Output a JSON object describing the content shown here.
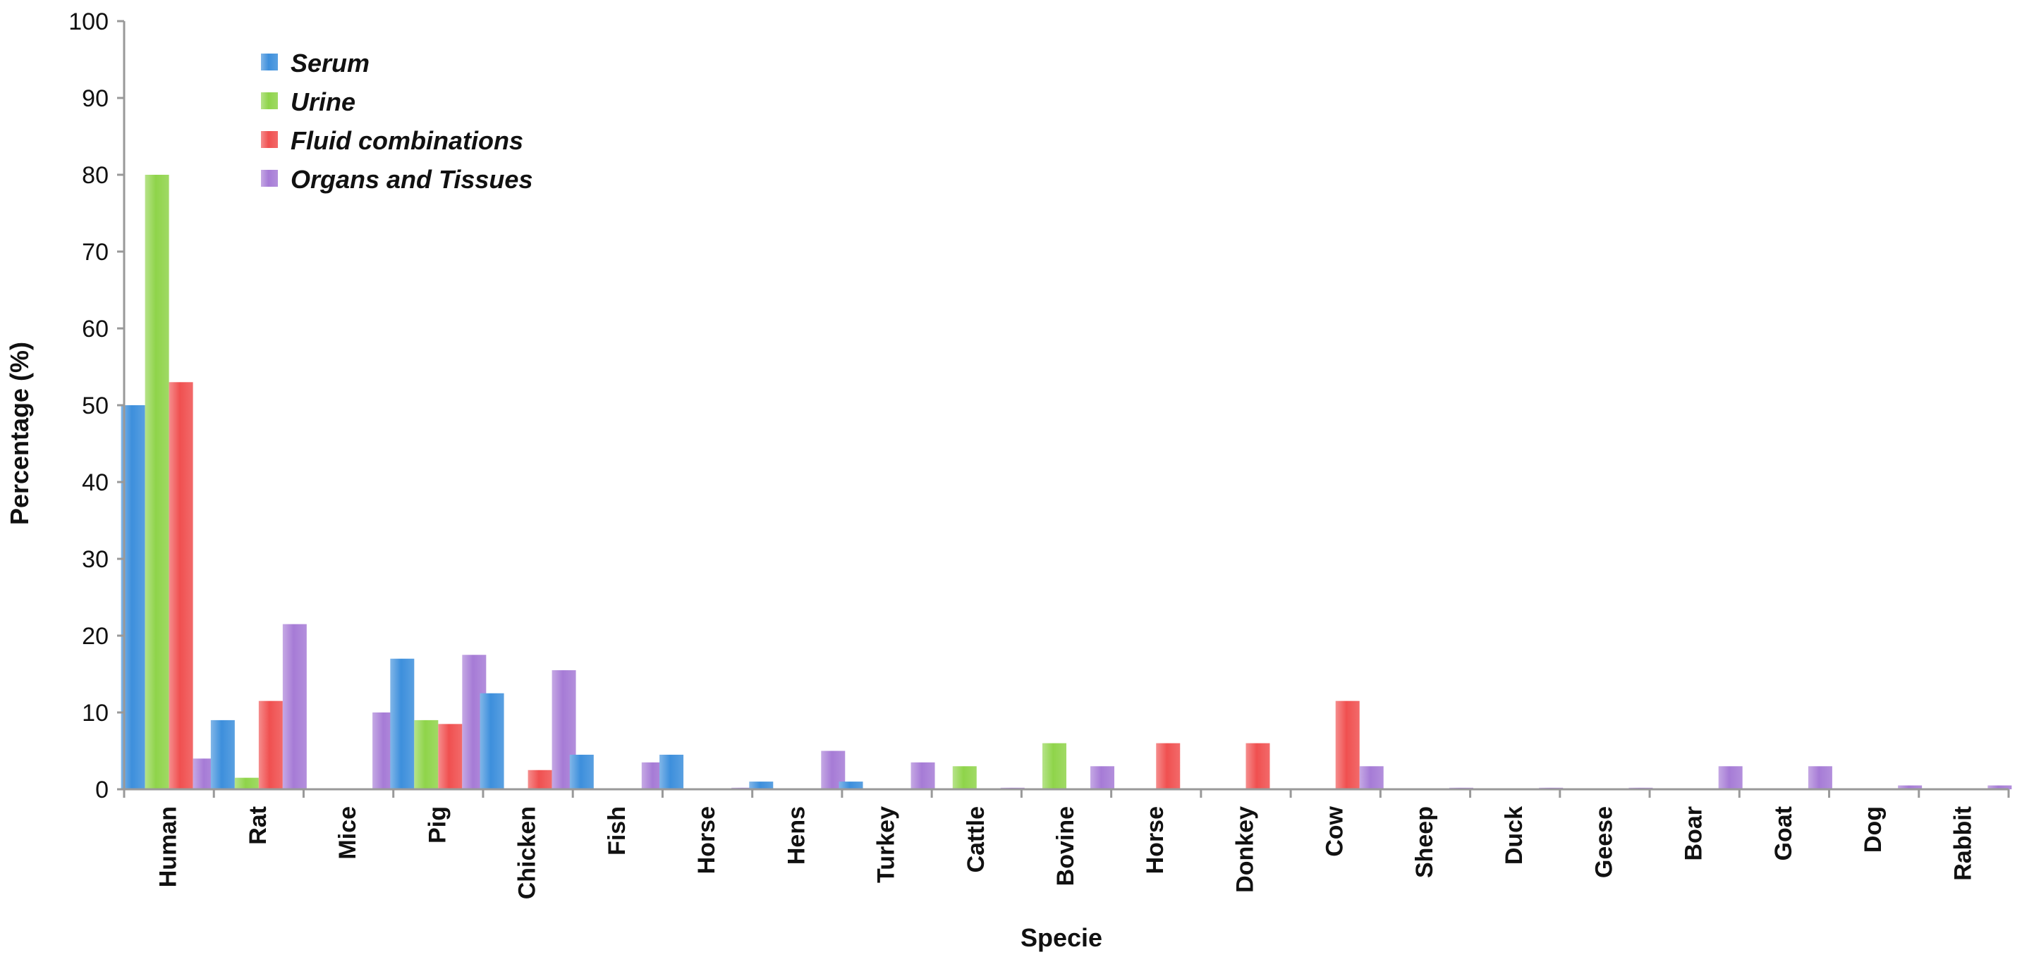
{
  "chart_data": {
    "type": "bar",
    "title": "",
    "xlabel": "Specie",
    "ylabel": "Percentage (%)",
    "ylim": [
      0,
      100
    ],
    "yticks": [
      0,
      10,
      20,
      30,
      40,
      50,
      60,
      70,
      80,
      90,
      100
    ],
    "grid": false,
    "legend": "top-left",
    "categories": [
      "Human",
      "Rat",
      "Mice",
      "Pig",
      "Chicken",
      "Fish",
      "Horse",
      "Hens",
      "Turkey",
      "Cattle",
      "Bovine",
      "Horse",
      "Donkey",
      "Cow",
      "Sheep",
      "Duck",
      "Geese",
      "Boar",
      "Goat",
      "Dog",
      "Rabbit"
    ],
    "series": [
      {
        "name": "Serum",
        "color": "#3d8fdc",
        "values": [
          50,
          9,
          0,
          17,
          12.5,
          4.5,
          4.5,
          1,
          1,
          0,
          0,
          0,
          0,
          0,
          0,
          0,
          0,
          0,
          0,
          0,
          0
        ]
      },
      {
        "name": "Urine",
        "color": "#8fd44a",
        "values": [
          80,
          1.5,
          0,
          9,
          0,
          0,
          0,
          0,
          0,
          3,
          6,
          0,
          0,
          0,
          0,
          0,
          0,
          0,
          0,
          0,
          0
        ]
      },
      {
        "name": "Fluid combinations",
        "color": "#f05050",
        "values": [
          53,
          11.5,
          0,
          8.5,
          2.5,
          0,
          0,
          0,
          0,
          0,
          0,
          6,
          6,
          11.5,
          0,
          0,
          0,
          0,
          0,
          0,
          0
        ]
      },
      {
        "name": "Organs and Tissues",
        "color": "#a67bd6",
        "values": [
          4,
          21.5,
          10,
          17.5,
          15.5,
          3.5,
          0.2,
          5,
          3.5,
          0.2,
          3,
          0,
          0,
          3,
          0.2,
          0.2,
          0.2,
          3,
          3,
          0.5,
          0.5
        ]
      }
    ]
  }
}
